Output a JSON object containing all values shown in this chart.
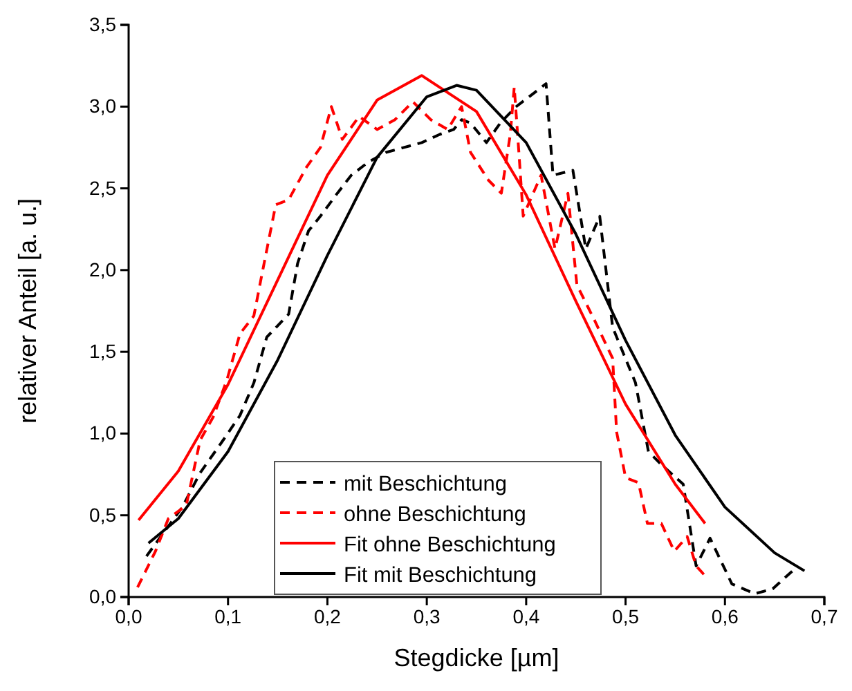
{
  "chart_data": {
    "type": "line",
    "xlabel": "Stegdicke [µm]",
    "ylabel": "relativer Anteil [a. u.]",
    "xlim": [
      0,
      0.7
    ],
    "ylim": [
      0,
      3.5
    ],
    "xticks": [
      {
        "value": 0,
        "label": "0,0"
      },
      {
        "value": 0.1,
        "label": "0,1"
      },
      {
        "value": 0.2,
        "label": "0,2"
      },
      {
        "value": 0.3,
        "label": "0,3"
      },
      {
        "value": 0.4,
        "label": "0,4"
      },
      {
        "value": 0.5,
        "label": "0,5"
      },
      {
        "value": 0.6,
        "label": "0,6"
      },
      {
        "value": 0.7,
        "label": "0,7"
      }
    ],
    "yticks": [
      {
        "value": 0,
        "label": "0,0"
      },
      {
        "value": 0.5,
        "label": "0,5"
      },
      {
        "value": 1,
        "label": "1,0"
      },
      {
        "value": 1.5,
        "label": "1,5"
      },
      {
        "value": 2,
        "label": "2,0"
      },
      {
        "value": 2.5,
        "label": "2,5"
      },
      {
        "value": 3,
        "label": "3,0"
      },
      {
        "value": 3.5,
        "label": "3,5"
      }
    ],
    "grid": false,
    "legend": "bottom",
    "marker": "none",
    "series": [
      {
        "name": "mit Beschichtung",
        "color": "#000000",
        "line_style": "dashed",
        "x": [
          0.018,
          0.054,
          0.072,
          0.094,
          0.112,
          0.126,
          0.139,
          0.161,
          0.17,
          0.181,
          0.193,
          0.21,
          0.224,
          0.241,
          0.259,
          0.277,
          0.295,
          0.313,
          0.327,
          0.335,
          0.344,
          0.36,
          0.374,
          0.39,
          0.42,
          0.427,
          0.447,
          0.46,
          0.474,
          0.487,
          0.51,
          0.523,
          0.536,
          0.558,
          0.571,
          0.585,
          0.607,
          0.63,
          0.648,
          0.668
        ],
        "values": [
          0.25,
          0.55,
          0.76,
          0.95,
          1.11,
          1.31,
          1.59,
          1.73,
          2.04,
          2.24,
          2.33,
          2.47,
          2.58,
          2.66,
          2.72,
          2.75,
          2.78,
          2.83,
          2.86,
          2.92,
          2.9,
          2.78,
          2.9,
          3.0,
          3.14,
          2.58,
          2.61,
          2.13,
          2.33,
          1.65,
          1.31,
          0.89,
          0.81,
          0.69,
          0.19,
          0.36,
          0.08,
          0.02,
          0.05,
          0.16
        ]
      },
      {
        "name": "ohne Beschichtung",
        "color": "#ff0000",
        "line_style": "dashed",
        "x": [
          0.009,
          0.027,
          0.04,
          0.058,
          0.072,
          0.085,
          0.099,
          0.112,
          0.126,
          0.134,
          0.148,
          0.161,
          0.179,
          0.193,
          0.204,
          0.215,
          0.232,
          0.25,
          0.268,
          0.286,
          0.304,
          0.321,
          0.335,
          0.344,
          0.362,
          0.375,
          0.384,
          0.388,
          0.393,
          0.397,
          0.415,
          0.429,
          0.442,
          0.451,
          0.469,
          0.487,
          0.491,
          0.5,
          0.513,
          0.522,
          0.536,
          0.549,
          0.562,
          0.571,
          0.58
        ],
        "values": [
          0.06,
          0.28,
          0.48,
          0.56,
          0.96,
          1.1,
          1.33,
          1.61,
          1.72,
          1.97,
          2.4,
          2.43,
          2.63,
          2.75,
          3.0,
          2.8,
          2.94,
          2.86,
          2.92,
          3.03,
          2.92,
          2.86,
          3.0,
          2.72,
          2.55,
          2.47,
          2.83,
          3.12,
          2.69,
          2.33,
          2.58,
          2.13,
          2.47,
          1.91,
          1.69,
          1.46,
          1.01,
          0.73,
          0.7,
          0.45,
          0.45,
          0.28,
          0.37,
          0.19,
          0.13
        ]
      },
      {
        "name": "Fit ohne Beschichtung",
        "color": "#ff0000",
        "line_style": "solid",
        "x": [
          0.01,
          0.05,
          0.1,
          0.15,
          0.2,
          0.25,
          0.295,
          0.35,
          0.4,
          0.45,
          0.5,
          0.55,
          0.58
        ],
        "values": [
          0.47,
          0.77,
          1.3,
          1.94,
          2.58,
          3.04,
          3.19,
          2.97,
          2.46,
          1.81,
          1.18,
          0.69,
          0.45
        ]
      },
      {
        "name": "Fit mit Beschichtung",
        "color": "#000000",
        "line_style": "solid",
        "x": [
          0.02,
          0.05,
          0.1,
          0.15,
          0.2,
          0.25,
          0.3,
          0.33,
          0.35,
          0.4,
          0.45,
          0.5,
          0.55,
          0.6,
          0.65,
          0.68
        ],
        "values": [
          0.33,
          0.48,
          0.89,
          1.45,
          2.09,
          2.69,
          3.06,
          3.13,
          3.1,
          2.78,
          2.22,
          1.57,
          0.99,
          0.55,
          0.27,
          0.16
        ]
      }
    ]
  }
}
